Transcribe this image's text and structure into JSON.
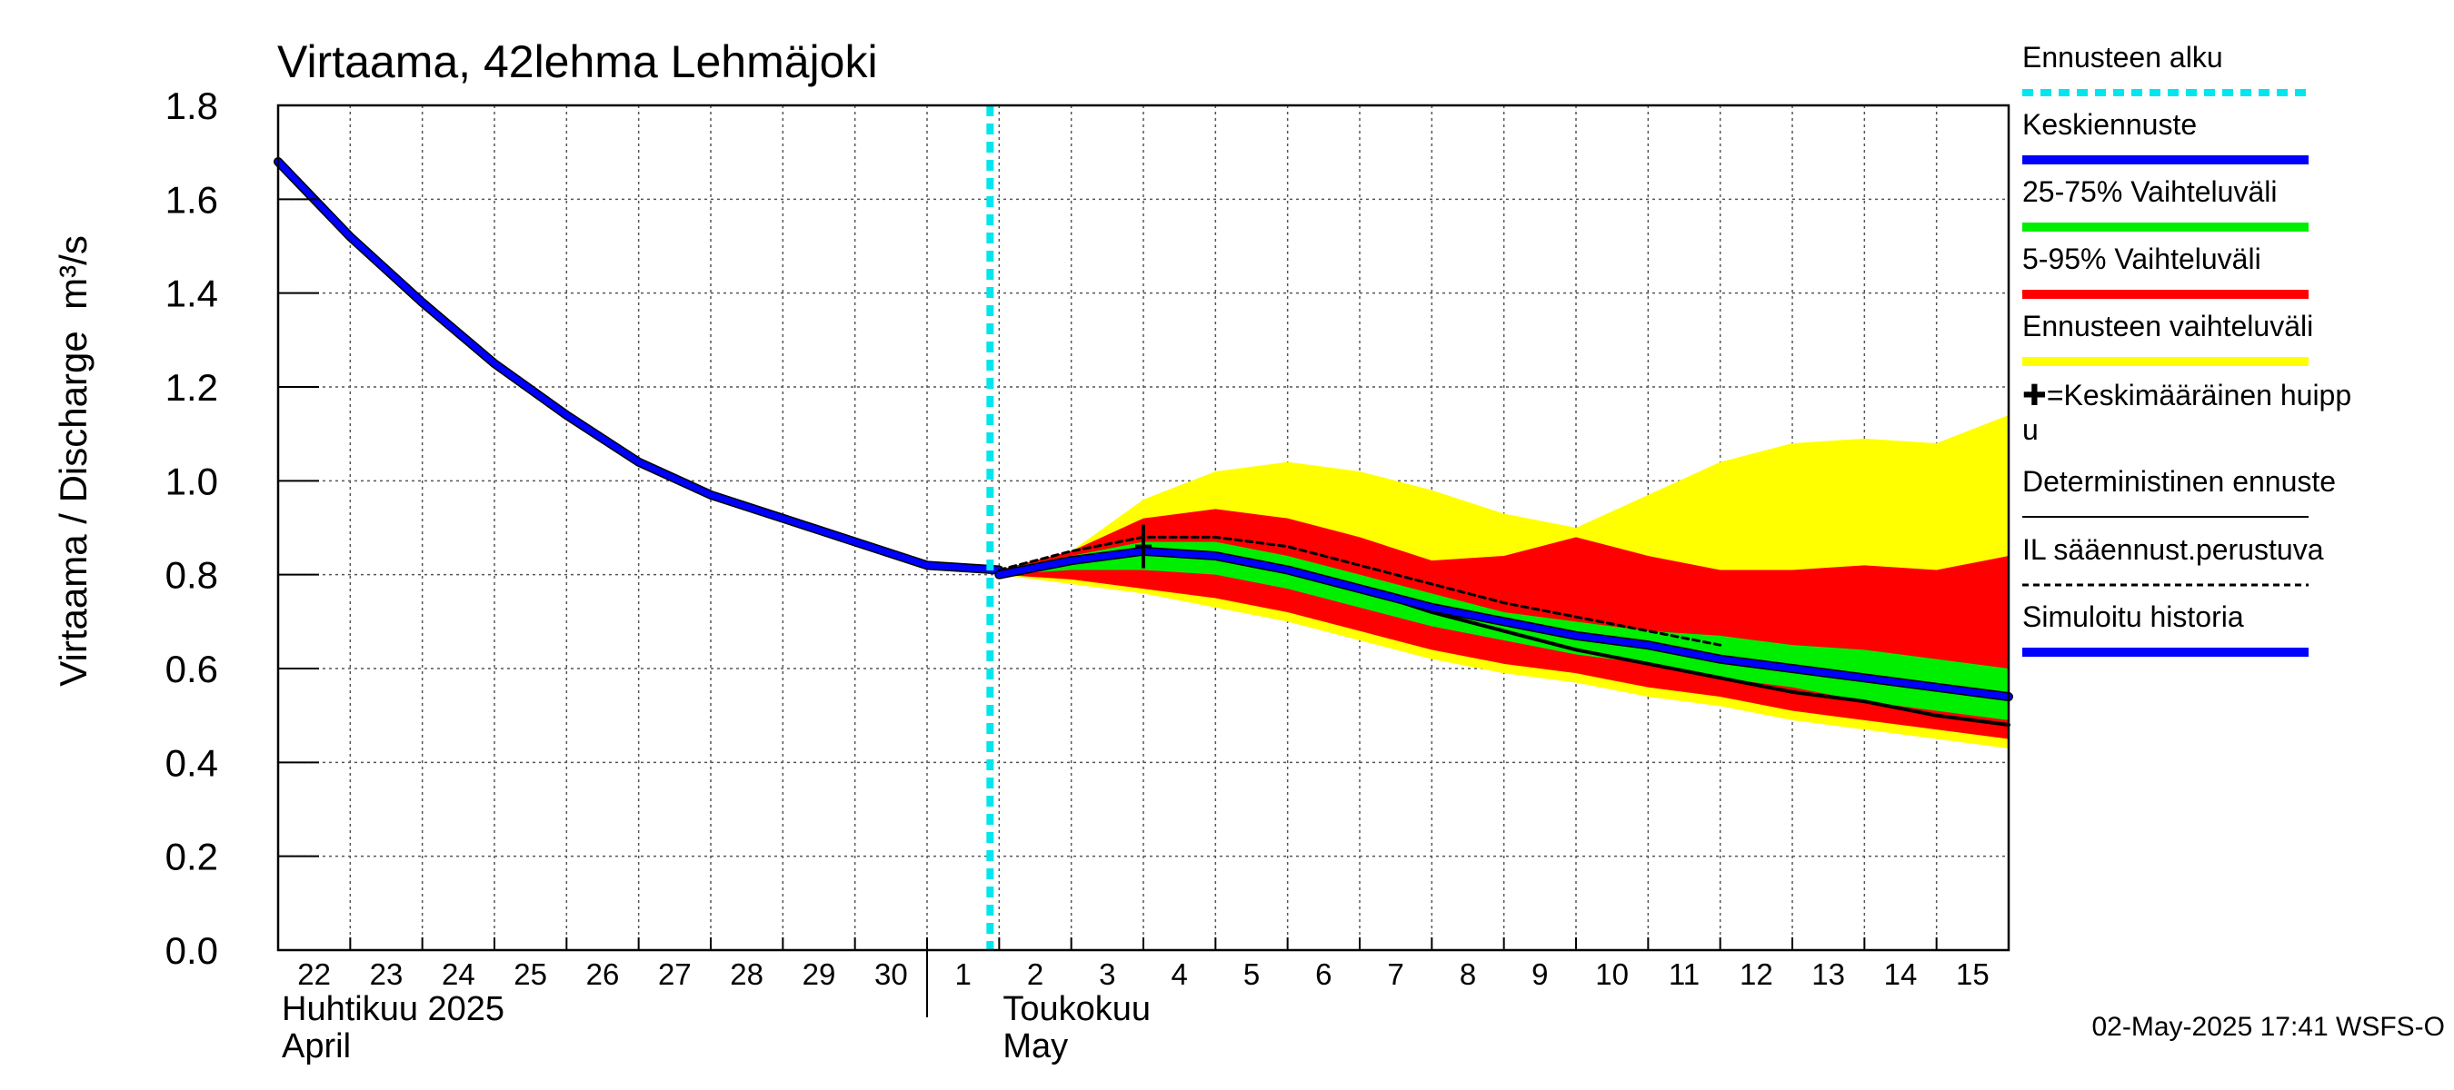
{
  "chart_data": {
    "type": "area",
    "title": "Virtaama, 42lehma Lehmäjoki",
    "ylabel": "Virtaama / Discharge",
    "yunit": "m³/s",
    "ylim": [
      0.0,
      1.8
    ],
    "yticks": [
      0.0,
      0.2,
      0.4,
      0.6,
      0.8,
      1.0,
      1.2,
      1.4,
      1.6,
      1.8
    ],
    "ytick_labels": [
      "0.0",
      "0.2",
      "0.4",
      "0.6",
      "0.8",
      "1.0",
      "1.2",
      "1.4",
      "1.6",
      "1.8"
    ],
    "xlim": [
      "2025-04-22",
      "2025-05-16"
    ],
    "x_day_labels": [
      {
        "date": "2025-04-22",
        "label": "22"
      },
      {
        "date": "2025-04-23",
        "label": "23"
      },
      {
        "date": "2025-04-24",
        "label": "24"
      },
      {
        "date": "2025-04-25",
        "label": "25"
      },
      {
        "date": "2025-04-26",
        "label": "26"
      },
      {
        "date": "2025-04-27",
        "label": "27"
      },
      {
        "date": "2025-04-28",
        "label": "28"
      },
      {
        "date": "2025-04-29",
        "label": "29"
      },
      {
        "date": "2025-04-30",
        "label": "30"
      },
      {
        "date": "2025-05-01",
        "label": "1"
      },
      {
        "date": "2025-05-02",
        "label": "2"
      },
      {
        "date": "2025-05-03",
        "label": "3"
      },
      {
        "date": "2025-05-04",
        "label": "4"
      },
      {
        "date": "2025-05-05",
        "label": "5"
      },
      {
        "date": "2025-05-06",
        "label": "6"
      },
      {
        "date": "2025-05-07",
        "label": "7"
      },
      {
        "date": "2025-05-08",
        "label": "8"
      },
      {
        "date": "2025-05-09",
        "label": "9"
      },
      {
        "date": "2025-05-10",
        "label": "10"
      },
      {
        "date": "2025-05-11",
        "label": "11"
      },
      {
        "date": "2025-05-12",
        "label": "12"
      },
      {
        "date": "2025-05-13",
        "label": "13"
      },
      {
        "date": "2025-05-14",
        "label": "14"
      },
      {
        "date": "2025-05-15",
        "label": "15"
      }
    ],
    "month_labels": [
      {
        "date": "2025-04-22",
        "line1": "Huhtikuu  2025",
        "line2": "April"
      },
      {
        "date": "2025-05-02",
        "line1": "Toukokuu",
        "line2": "May"
      }
    ],
    "month_boundary": "2025-05-01",
    "grid": true,
    "legend_placement": "right",
    "forecast_start": "2025-05-02",
    "simulated_history": {
      "name": "Simuloitu historia",
      "color": "#0000ff",
      "points": [
        [
          "2025-04-22",
          1.68
        ],
        [
          "2025-04-23",
          1.52
        ],
        [
          "2025-04-24",
          1.38
        ],
        [
          "2025-04-25",
          1.25
        ],
        [
          "2025-04-26",
          1.14
        ],
        [
          "2025-04-27",
          1.04
        ],
        [
          "2025-04-28",
          0.97
        ],
        [
          "2025-04-29",
          0.92
        ],
        [
          "2025-04-30",
          0.87
        ],
        [
          "2025-05-01",
          0.82
        ],
        [
          "2025-05-02",
          0.81
        ]
      ]
    },
    "band_total": {
      "name": "Ennusteen vaihteluväli",
      "color": "#ffff00",
      "upper": [
        [
          "2025-05-02",
          0.81
        ],
        [
          "2025-05-03",
          0.85
        ],
        [
          "2025-05-04",
          0.96
        ],
        [
          "2025-05-05",
          1.02
        ],
        [
          "2025-05-06",
          1.04
        ],
        [
          "2025-05-07",
          1.02
        ],
        [
          "2025-05-08",
          0.98
        ],
        [
          "2025-05-09",
          0.93
        ],
        [
          "2025-05-10",
          0.9
        ],
        [
          "2025-05-11",
          0.97
        ],
        [
          "2025-05-12",
          1.04
        ],
        [
          "2025-05-13",
          1.08
        ],
        [
          "2025-05-14",
          1.09
        ],
        [
          "2025-05-15",
          1.08
        ],
        [
          "2025-05-16",
          1.14
        ]
      ],
      "lower": [
        [
          "2025-05-02",
          0.8
        ],
        [
          "2025-05-03",
          0.78
        ],
        [
          "2025-05-04",
          0.76
        ],
        [
          "2025-05-05",
          0.73
        ],
        [
          "2025-05-06",
          0.7
        ],
        [
          "2025-05-07",
          0.66
        ],
        [
          "2025-05-08",
          0.62
        ],
        [
          "2025-05-09",
          0.59
        ],
        [
          "2025-05-10",
          0.57
        ],
        [
          "2025-05-11",
          0.54
        ],
        [
          "2025-05-12",
          0.52
        ],
        [
          "2025-05-13",
          0.49
        ],
        [
          "2025-05-14",
          0.47
        ],
        [
          "2025-05-15",
          0.45
        ],
        [
          "2025-05-16",
          0.43
        ]
      ]
    },
    "band_5_95": {
      "name": "5-95% Vaihteluväli",
      "color": "#ff0000",
      "upper": [
        [
          "2025-05-02",
          0.81
        ],
        [
          "2025-05-03",
          0.85
        ],
        [
          "2025-05-04",
          0.92
        ],
        [
          "2025-05-05",
          0.94
        ],
        [
          "2025-05-06",
          0.92
        ],
        [
          "2025-05-07",
          0.88
        ],
        [
          "2025-05-08",
          0.83
        ],
        [
          "2025-05-09",
          0.84
        ],
        [
          "2025-05-10",
          0.88
        ],
        [
          "2025-05-11",
          0.84
        ],
        [
          "2025-05-12",
          0.81
        ],
        [
          "2025-05-13",
          0.81
        ],
        [
          "2025-05-14",
          0.82
        ],
        [
          "2025-05-15",
          0.81
        ],
        [
          "2025-05-16",
          0.84
        ]
      ],
      "lower": [
        [
          "2025-05-02",
          0.8
        ],
        [
          "2025-05-03",
          0.79
        ],
        [
          "2025-05-04",
          0.77
        ],
        [
          "2025-05-05",
          0.75
        ],
        [
          "2025-05-06",
          0.72
        ],
        [
          "2025-05-07",
          0.68
        ],
        [
          "2025-05-08",
          0.64
        ],
        [
          "2025-05-09",
          0.61
        ],
        [
          "2025-05-10",
          0.59
        ],
        [
          "2025-05-11",
          0.56
        ],
        [
          "2025-05-12",
          0.54
        ],
        [
          "2025-05-13",
          0.51
        ],
        [
          "2025-05-14",
          0.49
        ],
        [
          "2025-05-15",
          0.47
        ],
        [
          "2025-05-16",
          0.45
        ]
      ]
    },
    "band_25_75": {
      "name": "25-75% Vaihteluväli",
      "color": "#00ee00",
      "upper": [
        [
          "2025-05-02",
          0.81
        ],
        [
          "2025-05-03",
          0.84
        ],
        [
          "2025-05-04",
          0.87
        ],
        [
          "2025-05-05",
          0.87
        ],
        [
          "2025-05-06",
          0.84
        ],
        [
          "2025-05-07",
          0.8
        ],
        [
          "2025-05-08",
          0.76
        ],
        [
          "2025-05-09",
          0.72
        ],
        [
          "2025-05-10",
          0.7
        ],
        [
          "2025-05-11",
          0.68
        ],
        [
          "2025-05-12",
          0.67
        ],
        [
          "2025-05-13",
          0.65
        ],
        [
          "2025-05-14",
          0.64
        ],
        [
          "2025-05-15",
          0.62
        ],
        [
          "2025-05-16",
          0.6
        ]
      ],
      "lower": [
        [
          "2025-05-02",
          0.8
        ],
        [
          "2025-05-03",
          0.81
        ],
        [
          "2025-05-04",
          0.81
        ],
        [
          "2025-05-05",
          0.8
        ],
        [
          "2025-05-06",
          0.77
        ],
        [
          "2025-05-07",
          0.73
        ],
        [
          "2025-05-08",
          0.69
        ],
        [
          "2025-05-09",
          0.66
        ],
        [
          "2025-05-10",
          0.63
        ],
        [
          "2025-05-11",
          0.61
        ],
        [
          "2025-05-12",
          0.58
        ],
        [
          "2025-05-13",
          0.56
        ],
        [
          "2025-05-14",
          0.53
        ],
        [
          "2025-05-15",
          0.51
        ],
        [
          "2025-05-16",
          0.49
        ]
      ]
    },
    "deterministic": {
      "name": "Deterministinen ennuste",
      "color": "#000000",
      "points": [
        [
          "2025-05-02",
          0.8
        ],
        [
          "2025-05-03",
          0.83
        ],
        [
          "2025-05-04",
          0.85
        ],
        [
          "2025-05-05",
          0.84
        ],
        [
          "2025-05-06",
          0.81
        ],
        [
          "2025-05-07",
          0.77
        ],
        [
          "2025-05-08",
          0.72
        ],
        [
          "2025-05-09",
          0.68
        ],
        [
          "2025-05-10",
          0.64
        ],
        [
          "2025-05-11",
          0.61
        ],
        [
          "2025-05-12",
          0.58
        ],
        [
          "2025-05-13",
          0.55
        ],
        [
          "2025-05-14",
          0.53
        ],
        [
          "2025-05-15",
          0.5
        ],
        [
          "2025-05-16",
          0.48
        ]
      ]
    },
    "il_forecast": {
      "name": "IL sääennust.perustuva",
      "color": "#000000",
      "points": [
        [
          "2025-05-02",
          0.81
        ],
        [
          "2025-05-03",
          0.85
        ],
        [
          "2025-05-04",
          0.88
        ],
        [
          "2025-05-05",
          0.88
        ],
        [
          "2025-05-06",
          0.86
        ],
        [
          "2025-05-07",
          0.82
        ],
        [
          "2025-05-08",
          0.78
        ],
        [
          "2025-05-09",
          0.74
        ],
        [
          "2025-05-10",
          0.71
        ],
        [
          "2025-05-11",
          0.68
        ],
        [
          "2025-05-12",
          0.65
        ]
      ]
    },
    "mean_forecast": {
      "name": "Keskiennuste",
      "color": "#0000ff",
      "points": [
        [
          "2025-05-02",
          0.8
        ],
        [
          "2025-05-03",
          0.83
        ],
        [
          "2025-05-04",
          0.85
        ],
        [
          "2025-05-05",
          0.84
        ],
        [
          "2025-05-06",
          0.81
        ],
        [
          "2025-05-07",
          0.77
        ],
        [
          "2025-05-08",
          0.73
        ],
        [
          "2025-05-09",
          0.7
        ],
        [
          "2025-05-10",
          0.67
        ],
        [
          "2025-05-11",
          0.65
        ],
        [
          "2025-05-12",
          0.62
        ],
        [
          "2025-05-13",
          0.6
        ],
        [
          "2025-05-14",
          0.58
        ],
        [
          "2025-05-15",
          0.56
        ],
        [
          "2025-05-16",
          0.54
        ]
      ]
    },
    "mean_peak": {
      "date": "2025-05-04",
      "value": 0.86
    },
    "legend": [
      {
        "key": "forecast_start",
        "label": "Ennusteen alku",
        "color": "#00e5ee",
        "style": "dotted"
      },
      {
        "key": "mean",
        "label": "Keskiennuste",
        "color": "#0000ff",
        "style": "solid"
      },
      {
        "key": "b2575",
        "label": "25-75% Vaihteluväli",
        "color": "#00ee00",
        "style": "solid"
      },
      {
        "key": "b595",
        "label": "5-95% Vaihteluväli",
        "color": "#ff0000",
        "style": "solid"
      },
      {
        "key": "btotal",
        "label": "Ennusteen vaihteluväli",
        "color": "#ffff00",
        "style": "solid"
      },
      {
        "key": "peak",
        "label": "✚=Keskimääräinen huipp",
        "label2": "u",
        "style": "none"
      },
      {
        "key": "det",
        "label": "Deterministinen ennuste",
        "color": "#000000",
        "style": "thin"
      },
      {
        "key": "il",
        "label": "IL sääennust.perustuva",
        "color": "#000000",
        "style": "dashed"
      },
      {
        "key": "sim",
        "label": "Simuloitu historia",
        "color": "#0000ff",
        "style": "solid"
      }
    ],
    "timestamp": "02-May-2025 17:41 WSFS-O"
  }
}
